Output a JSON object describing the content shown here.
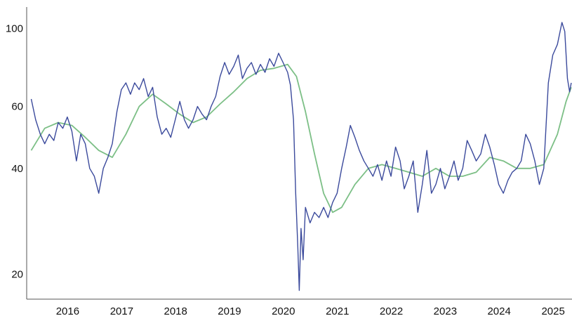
{
  "chart_data": {
    "type": "line",
    "title": "",
    "xlabel": "",
    "ylabel": "",
    "y_scale": "log",
    "ylim": [
      17,
      115
    ],
    "xlim": [
      "2015-03-01",
      "2025-04-10"
    ],
    "grid": false,
    "legend": "none",
    "y_ticks": [
      20,
      40,
      60,
      100
    ],
    "x_ticks": [
      {
        "date": "2016-01-01",
        "label": "2016"
      },
      {
        "date": "2017-01-01",
        "label": "2017"
      },
      {
        "date": "2018-01-01",
        "label": "2018"
      },
      {
        "date": "2019-01-01",
        "label": "2019"
      },
      {
        "date": "2020-01-01",
        "label": "2020"
      },
      {
        "date": "2021-01-01",
        "label": "2021"
      },
      {
        "date": "2022-01-01",
        "label": "2022"
      },
      {
        "date": "2023-01-01",
        "label": "2023"
      },
      {
        "date": "2024-01-01",
        "label": "2024"
      },
      {
        "date": "2025-01-01",
        "label": "2025"
      }
    ],
    "colors": {
      "price": "#3b4a9c",
      "moving_average": "#7cbf86"
    },
    "series": [
      {
        "values": [
          [
            "2015-04-01",
            63
          ],
          [
            "2015-05-01",
            55
          ],
          [
            "2015-06-01",
            50
          ],
          [
            "2015-07-01",
            47
          ],
          [
            "2015-08-01",
            50
          ],
          [
            "2015-09-01",
            48
          ],
          [
            "2015-10-01",
            54
          ],
          [
            "2015-11-01",
            52
          ],
          [
            "2015-12-01",
            56
          ],
          [
            "2016-01-01",
            51
          ],
          [
            "2016-02-01",
            42
          ],
          [
            "2016-03-01",
            50
          ],
          [
            "2016-04-01",
            47
          ],
          [
            "2016-05-01",
            40
          ],
          [
            "2016-06-01",
            38
          ],
          [
            "2016-07-01",
            34
          ],
          [
            "2016-08-01",
            40
          ],
          [
            "2016-09-01",
            43
          ],
          [
            "2016-10-01",
            47
          ],
          [
            "2016-11-01",
            58
          ],
          [
            "2016-12-01",
            67
          ],
          [
            "2017-01-01",
            70
          ],
          [
            "2017-02-01",
            65
          ],
          [
            "2017-03-01",
            70
          ],
          [
            "2017-04-01",
            67
          ],
          [
            "2017-05-01",
            72
          ],
          [
            "2017-06-01",
            64
          ],
          [
            "2017-07-01",
            68
          ],
          [
            "2017-08-01",
            56
          ],
          [
            "2017-09-01",
            50
          ],
          [
            "2017-10-01",
            52
          ],
          [
            "2017-11-01",
            49
          ],
          [
            "2017-12-01",
            55
          ],
          [
            "2018-01-01",
            62
          ],
          [
            "2018-02-01",
            55
          ],
          [
            "2018-03-01",
            52
          ],
          [
            "2018-04-01",
            55
          ],
          [
            "2018-05-01",
            60
          ],
          [
            "2018-06-01",
            57
          ],
          [
            "2018-07-01",
            55
          ],
          [
            "2018-08-01",
            60
          ],
          [
            "2018-09-01",
            64
          ],
          [
            "2018-10-01",
            73
          ],
          [
            "2018-11-01",
            80
          ],
          [
            "2018-12-01",
            74
          ],
          [
            "2019-01-01",
            78
          ],
          [
            "2019-02-01",
            84
          ],
          [
            "2019-03-01",
            72
          ],
          [
            "2019-04-01",
            77
          ],
          [
            "2019-05-01",
            80
          ],
          [
            "2019-06-01",
            74
          ],
          [
            "2019-07-01",
            79
          ],
          [
            "2019-08-01",
            75
          ],
          [
            "2019-09-01",
            82
          ],
          [
            "2019-10-01",
            78
          ],
          [
            "2019-11-01",
            85
          ],
          [
            "2019-12-01",
            80
          ],
          [
            "2020-01-01",
            75
          ],
          [
            "2020-01-20",
            69
          ],
          [
            "2020-02-10",
            55
          ],
          [
            "2020-02-25",
            34
          ],
          [
            "2020-03-10",
            24
          ],
          [
            "2020-03-20",
            18
          ],
          [
            "2020-04-01",
            27
          ],
          [
            "2020-04-15",
            22
          ],
          [
            "2020-05-01",
            31
          ],
          [
            "2020-06-01",
            28
          ],
          [
            "2020-07-01",
            30
          ],
          [
            "2020-08-01",
            29
          ],
          [
            "2020-09-01",
            31
          ],
          [
            "2020-10-01",
            29
          ],
          [
            "2020-11-01",
            32
          ],
          [
            "2020-12-01",
            34
          ],
          [
            "2021-01-01",
            40
          ],
          [
            "2021-02-01",
            46
          ],
          [
            "2021-03-01",
            53
          ],
          [
            "2021-04-01",
            49
          ],
          [
            "2021-05-01",
            45
          ],
          [
            "2021-06-01",
            42
          ],
          [
            "2021-07-01",
            40
          ],
          [
            "2021-08-01",
            38
          ],
          [
            "2021-09-01",
            41
          ],
          [
            "2021-10-01",
            37
          ],
          [
            "2021-11-01",
            42
          ],
          [
            "2021-12-01",
            38
          ],
          [
            "2022-01-01",
            46
          ],
          [
            "2022-02-01",
            42
          ],
          [
            "2022-03-01",
            35
          ],
          [
            "2022-04-01",
            38
          ],
          [
            "2022-05-01",
            42
          ],
          [
            "2022-06-01",
            30
          ],
          [
            "2022-07-01",
            36
          ],
          [
            "2022-08-01",
            45
          ],
          [
            "2022-09-01",
            34
          ],
          [
            "2022-10-01",
            36
          ],
          [
            "2022-11-01",
            40
          ],
          [
            "2022-12-01",
            35
          ],
          [
            "2023-01-01",
            38
          ],
          [
            "2023-02-01",
            42
          ],
          [
            "2023-03-01",
            37
          ],
          [
            "2023-04-01",
            40
          ],
          [
            "2023-05-01",
            48
          ],
          [
            "2023-06-01",
            45
          ],
          [
            "2023-07-01",
            42
          ],
          [
            "2023-08-01",
            44
          ],
          [
            "2023-09-01",
            50
          ],
          [
            "2023-10-01",
            46
          ],
          [
            "2023-11-01",
            41
          ],
          [
            "2023-12-01",
            36
          ],
          [
            "2024-01-01",
            34
          ],
          [
            "2024-02-01",
            37
          ],
          [
            "2024-03-01",
            39
          ],
          [
            "2024-04-01",
            40
          ],
          [
            "2024-05-01",
            42
          ],
          [
            "2024-06-01",
            50
          ],
          [
            "2024-07-01",
            47
          ],
          [
            "2024-08-01",
            42
          ],
          [
            "2024-09-01",
            36
          ],
          [
            "2024-10-01",
            40
          ],
          [
            "2024-11-01",
            70
          ],
          [
            "2024-12-01",
            84
          ],
          [
            "2025-01-01",
            90
          ],
          [
            "2025-02-01",
            104
          ],
          [
            "2025-02-20",
            98
          ],
          [
            "2025-03-10",
            72
          ],
          [
            "2025-03-25",
            66
          ],
          [
            "2025-04-05",
            70
          ]
        ]
      },
      {
        "values": [
          [
            "2015-04-01",
            45
          ],
          [
            "2015-07-01",
            52
          ],
          [
            "2015-10-01",
            54
          ],
          [
            "2016-01-01",
            53
          ],
          [
            "2016-04-01",
            49
          ],
          [
            "2016-07-01",
            45
          ],
          [
            "2016-10-01",
            43
          ],
          [
            "2017-01-01",
            50
          ],
          [
            "2017-04-01",
            60
          ],
          [
            "2017-07-01",
            65
          ],
          [
            "2017-10-01",
            61
          ],
          [
            "2018-01-01",
            57
          ],
          [
            "2018-04-01",
            54
          ],
          [
            "2018-07-01",
            56
          ],
          [
            "2018-10-01",
            61
          ],
          [
            "2019-01-01",
            66
          ],
          [
            "2019-04-01",
            72
          ],
          [
            "2019-07-01",
            76
          ],
          [
            "2019-10-01",
            77
          ],
          [
            "2020-01-01",
            79
          ],
          [
            "2020-03-01",
            73
          ],
          [
            "2020-05-01",
            58
          ],
          [
            "2020-07-01",
            44
          ],
          [
            "2020-09-01",
            34
          ],
          [
            "2020-11-01",
            30
          ],
          [
            "2021-01-01",
            31
          ],
          [
            "2021-04-01",
            36
          ],
          [
            "2021-07-01",
            40
          ],
          [
            "2021-10-01",
            41
          ],
          [
            "2022-01-01",
            40
          ],
          [
            "2022-04-01",
            39
          ],
          [
            "2022-07-01",
            38
          ],
          [
            "2022-10-01",
            40
          ],
          [
            "2023-01-01",
            38
          ],
          [
            "2023-04-01",
            38
          ],
          [
            "2023-07-01",
            39
          ],
          [
            "2023-10-01",
            43
          ],
          [
            "2024-01-01",
            42
          ],
          [
            "2024-04-01",
            40
          ],
          [
            "2024-07-01",
            40
          ],
          [
            "2024-10-01",
            41
          ],
          [
            "2025-01-01",
            50
          ],
          [
            "2025-03-01",
            62
          ],
          [
            "2025-04-05",
            68
          ]
        ]
      }
    ]
  }
}
